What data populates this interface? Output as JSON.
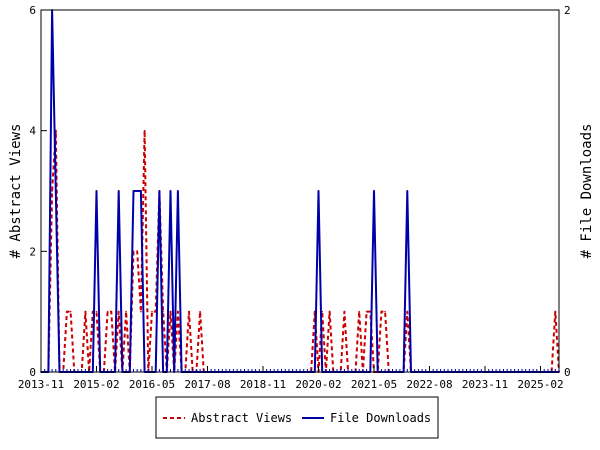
{
  "colors": {
    "abstract_views": "#cc0000",
    "file_downloads": "#0000aa",
    "axis": "#000000",
    "background": "#ffffff"
  },
  "chart_data": {
    "type": "line",
    "x_unit": "month",
    "x_ticks": [
      "2013-11",
      "2015-02",
      "2016-05",
      "2017-08",
      "2018-11",
      "2020-02",
      "2021-05",
      "2022-08",
      "2023-11",
      "2025-02"
    ],
    "xlim": [
      "2013-11",
      "2025-07"
    ],
    "grid": false,
    "legend_position": "bottom",
    "left_axis": {
      "label": "# Abstract Views",
      "ylim": [
        0,
        6
      ],
      "ticks": [
        0,
        2,
        4,
        6
      ]
    },
    "right_axis": {
      "label": "# File Downloads",
      "ylim": [
        0,
        2
      ],
      "ticks": [
        0,
        2
      ]
    },
    "series": [
      {
        "name": "Abstract Views",
        "axis": "left",
        "style": "dashed",
        "points": [
          [
            "2013-11",
            0
          ],
          [
            "2014-01",
            0
          ],
          [
            "2014-02",
            3
          ],
          [
            "2014-03",
            4
          ],
          [
            "2014-04",
            0
          ],
          [
            "2014-05",
            0
          ],
          [
            "2014-06",
            1
          ],
          [
            "2014-07",
            1
          ],
          [
            "2014-08",
            0
          ],
          [
            "2014-09",
            0
          ],
          [
            "2014-10",
            0
          ],
          [
            "2014-11",
            1
          ],
          [
            "2014-12",
            0
          ],
          [
            "2015-01",
            1
          ],
          [
            "2015-02",
            1
          ],
          [
            "2015-03",
            0
          ],
          [
            "2015-04",
            0
          ],
          [
            "2015-05",
            1
          ],
          [
            "2015-06",
            1
          ],
          [
            "2015-07",
            0
          ],
          [
            "2015-08",
            1
          ],
          [
            "2015-09",
            0
          ],
          [
            "2015-10",
            1
          ],
          [
            "2015-11",
            0
          ],
          [
            "2015-12",
            2
          ],
          [
            "2016-01",
            2
          ],
          [
            "2016-02",
            1
          ],
          [
            "2016-03",
            4
          ],
          [
            "2016-04",
            0
          ],
          [
            "2016-05",
            1
          ],
          [
            "2016-06",
            1
          ],
          [
            "2016-07",
            3
          ],
          [
            "2016-08",
            1
          ],
          [
            "2016-09",
            0
          ],
          [
            "2016-10",
            1
          ],
          [
            "2016-11",
            0
          ],
          [
            "2016-12",
            1
          ],
          [
            "2017-01",
            0
          ],
          [
            "2017-02",
            0
          ],
          [
            "2017-03",
            1
          ],
          [
            "2017-04",
            0
          ],
          [
            "2017-05",
            0
          ],
          [
            "2017-06",
            1
          ],
          [
            "2017-07",
            0
          ],
          [
            "2017-08",
            0
          ],
          [
            "2019-12",
            0
          ],
          [
            "2020-01",
            1
          ],
          [
            "2020-02",
            0
          ],
          [
            "2020-03",
            1
          ],
          [
            "2020-04",
            0
          ],
          [
            "2020-05",
            1
          ],
          [
            "2020-06",
            0
          ],
          [
            "2020-07",
            0
          ],
          [
            "2020-08",
            0
          ],
          [
            "2020-09",
            1
          ],
          [
            "2020-10",
            0
          ],
          [
            "2020-11",
            0
          ],
          [
            "2020-12",
            0
          ],
          [
            "2021-01",
            1
          ],
          [
            "2021-02",
            0
          ],
          [
            "2021-03",
            1
          ],
          [
            "2021-04",
            1
          ],
          [
            "2021-05",
            0
          ],
          [
            "2021-06",
            0
          ],
          [
            "2021-07",
            1
          ],
          [
            "2021-08",
            1
          ],
          [
            "2021-09",
            0
          ],
          [
            "2022-01",
            0
          ],
          [
            "2022-02",
            1
          ],
          [
            "2022-03",
            0
          ],
          [
            "2025-05",
            0
          ],
          [
            "2025-06",
            1
          ],
          [
            "2025-07",
            0
          ]
        ]
      },
      {
        "name": "File Downloads",
        "axis": "right",
        "style": "solid",
        "points": [
          [
            "2013-11",
            0
          ],
          [
            "2014-01",
            0
          ],
          [
            "2014-02",
            2
          ],
          [
            "2014-03",
            1
          ],
          [
            "2014-04",
            0
          ],
          [
            "2015-01",
            0
          ],
          [
            "2015-02",
            1
          ],
          [
            "2015-03",
            0
          ],
          [
            "2015-07",
            0
          ],
          [
            "2015-08",
            1
          ],
          [
            "2015-09",
            0
          ],
          [
            "2015-10",
            0
          ],
          [
            "2015-11",
            0
          ],
          [
            "2015-12",
            1
          ],
          [
            "2016-01",
            1
          ],
          [
            "2016-02",
            1
          ],
          [
            "2016-03",
            0
          ],
          [
            "2016-06",
            0
          ],
          [
            "2016-07",
            1
          ],
          [
            "2016-08",
            0
          ],
          [
            "2016-09",
            0
          ],
          [
            "2016-10",
            1
          ],
          [
            "2016-11",
            0
          ],
          [
            "2016-12",
            1
          ],
          [
            "2017-01",
            0
          ],
          [
            "2020-01",
            0
          ],
          [
            "2020-02",
            1
          ],
          [
            "2020-03",
            0
          ],
          [
            "2021-04",
            0
          ],
          [
            "2021-05",
            1
          ],
          [
            "2021-06",
            0
          ],
          [
            "2022-01",
            0
          ],
          [
            "2022-02",
            1
          ],
          [
            "2022-03",
            0
          ],
          [
            "2025-07",
            0
          ]
        ]
      }
    ]
  }
}
